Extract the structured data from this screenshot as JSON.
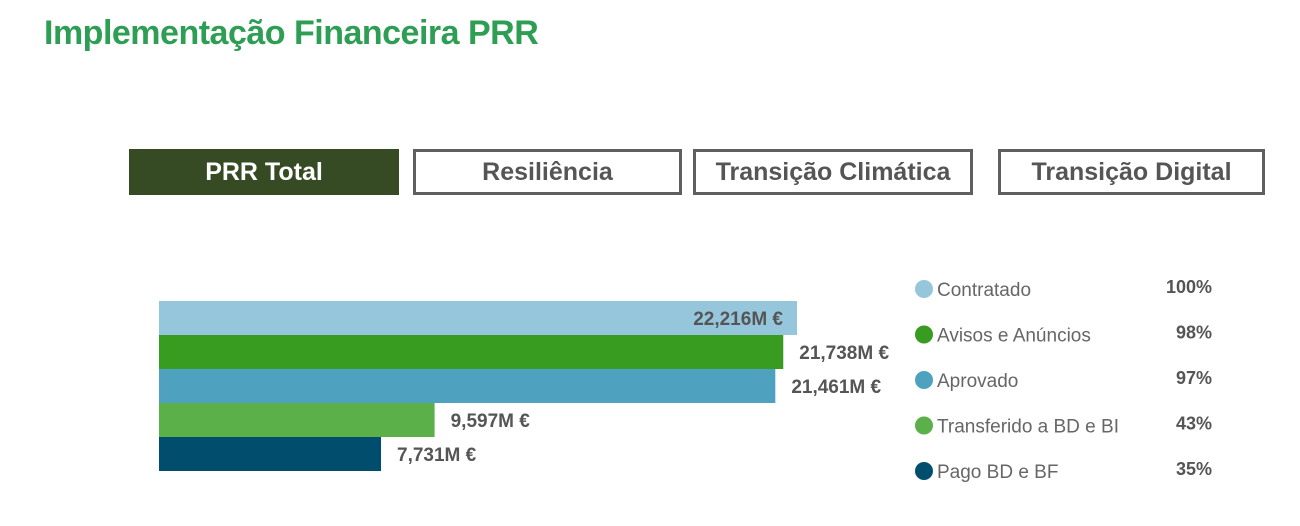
{
  "header": {
    "title": "Implementação Financeira PRR"
  },
  "tabs": [
    {
      "label": "PRR Total",
      "active": true
    },
    {
      "label": "Resiliência",
      "active": false
    },
    {
      "label": "Transição Climática",
      "active": false
    },
    {
      "label": "Transição Digital",
      "active": false
    }
  ],
  "chart_data": {
    "type": "bar",
    "orientation": "horizontal",
    "categories": [
      "Contratado",
      "Avisos e Anúncios",
      "Aprovado",
      "Transferido a BD e BI",
      "Pago BD e BF"
    ],
    "values": [
      22216,
      21738,
      21461,
      9597,
      7731
    ],
    "value_labels": [
      "22,216M €",
      "21,738M €",
      "21,461M €",
      "9,597M €",
      "7,731M €"
    ],
    "percentages": [
      "100%",
      "98%",
      "97%",
      "43%",
      "35%"
    ],
    "colors": [
      "#96c6dc",
      "#379c20",
      "#4fa1c0",
      "#5bb04a",
      "#004d6d"
    ],
    "legend_position": "right",
    "xlim": [
      0,
      22216
    ],
    "title": "",
    "xlabel": "",
    "ylabel": ""
  }
}
